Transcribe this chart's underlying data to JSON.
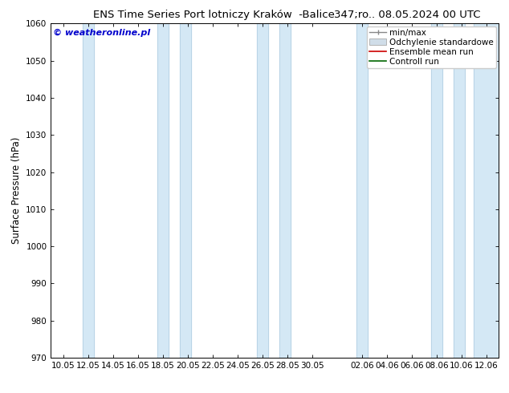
{
  "title_left": "ENS Time Series Port lotniczy Kraków  -Balice",
  "title_right": "347;ro.. 08.05.2024 00 UTC",
  "ylabel": "Surface Pressure (hPa)",
  "ylim": [
    970,
    1060
  ],
  "yticks": [
    970,
    980,
    990,
    1000,
    1010,
    1020,
    1030,
    1040,
    1050,
    1060
  ],
  "watermark": "© weatheronline.pl",
  "watermark_color": "#0000cc",
  "background_color": "#ffffff",
  "plot_bg_color": "#ffffff",
  "xtick_labels": [
    "10.05",
    "12.05",
    "14.05",
    "16.05",
    "18.05",
    "20.05",
    "22.05",
    "24.05",
    "26.05",
    "28.05",
    "30.05",
    "02.06",
    "04.06",
    "06.06",
    "08.06",
    "10.06",
    "12.06"
  ],
  "shade_band_color": "#d4e8f5",
  "shade_band_border": "#b0cce0",
  "legend_labels": [
    "min/max",
    "Odchylenie standardowe",
    "Ensemble mean run",
    "Controll run"
  ],
  "title_fontsize": 9.5,
  "axis_fontsize": 8.5,
  "tick_fontsize": 7.5,
  "legend_fontsize": 7.5
}
